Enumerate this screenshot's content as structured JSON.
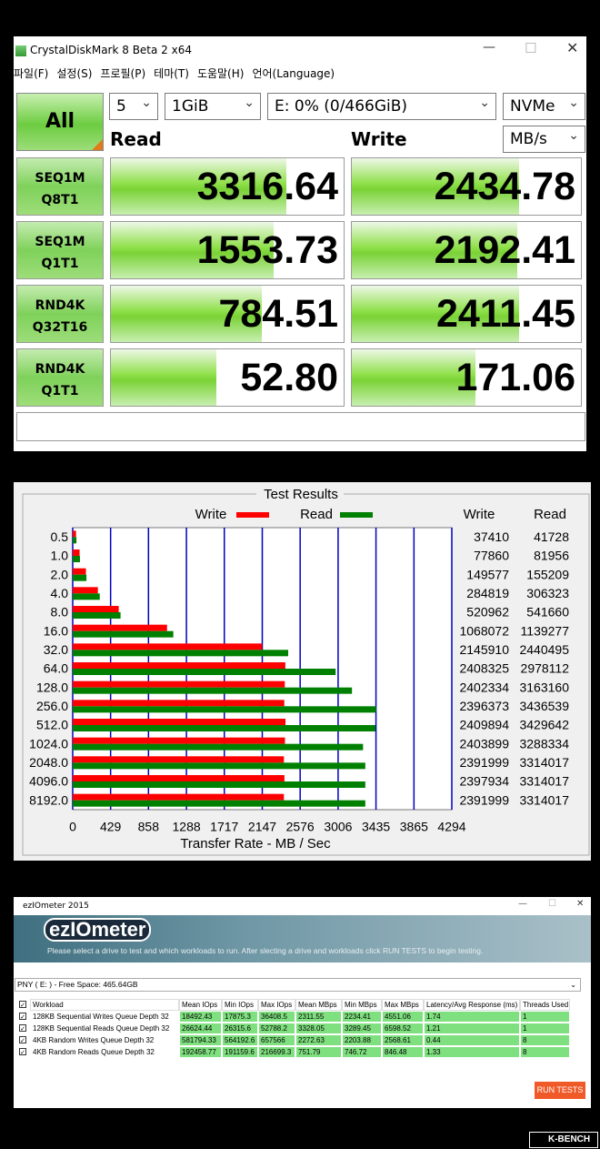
{
  "crystaldiskmark": {
    "title": "CrystalDiskMark 8 Beta 2 x64",
    "menu": [
      "파일(F)",
      "설정(S)",
      "프로필(P)",
      "테마(T)",
      "도움말(H)",
      "언어(Language)"
    ],
    "all_button": "All",
    "count": "5",
    "size": "1GiB",
    "drive": "E: 0% (0/466GiB)",
    "profile": "NVMe",
    "unit": "MB/s",
    "read_header": "Read",
    "write_header": "Write",
    "tests": [
      {
        "label": [
          "SEQ1M",
          "Q8T1"
        ],
        "read": "3316.64",
        "write": "2434.78"
      },
      {
        "label": [
          "SEQ1M",
          "Q1T1"
        ],
        "read": "1553.73",
        "write": "2192.41"
      },
      {
        "label": [
          "RND4K",
          "Q32T16"
        ],
        "read": "784.51",
        "write": "2411.45"
      },
      {
        "label": [
          "RND4K",
          "Q1T1"
        ],
        "read": "52.80",
        "write": "171.06"
      }
    ]
  },
  "chart_data": {
    "type": "bar",
    "title": "Test Results",
    "x_label": "Transfer Rate - MB / Sec",
    "categories": [
      "0.5",
      "1.0",
      "2.0",
      "4.0",
      "8.0",
      "16.0",
      "32.0",
      "64.0",
      "128.0",
      "256.0",
      "512.0",
      "1024.0",
      "2048.0",
      "4096.0",
      "8192.0"
    ],
    "series": [
      {
        "name": "Write",
        "color": "#ff0000",
        "values": [
          37.41,
          77.86,
          149.577,
          284.819,
          520.962,
          1068.072,
          2145.91,
          2408.325,
          2402.334,
          2396.373,
          2409.894,
          2403.899,
          2391.999,
          2397.934,
          2391.999
        ],
        "value_labels": [
          "37410",
          "77860",
          "149577",
          "284819",
          "520962",
          "1068072",
          "2145910",
          "2408325",
          "2402334",
          "2396373",
          "2409894",
          "2403899",
          "2391999",
          "2397934",
          "2391999"
        ]
      },
      {
        "name": "Read",
        "color": "#008000",
        "values": [
          41.728,
          81.956,
          155.209,
          306.323,
          541.66,
          1139.277,
          2440.495,
          2978.112,
          3163.16,
          3436.539,
          3429.642,
          3288.334,
          3314.017,
          3314.017,
          3314.017
        ],
        "value_labels": [
          "41728",
          "81956",
          "155209",
          "306323",
          "541660",
          "1139277",
          "2440495",
          "2978112",
          "3163160",
          "3436539",
          "3429642",
          "3288334",
          "3314017",
          "3314017",
          "3314017"
        ]
      }
    ],
    "xlim": [
      0,
      4294
    ],
    "xticks": [
      0,
      429,
      858,
      1288,
      1717,
      2147,
      2576,
      3006,
      3435,
      3865,
      4294
    ],
    "grid": true,
    "grid_color": "#0000c0"
  },
  "eziometer": {
    "window_title": "ezIOmeter 2015",
    "logo": "ezIOmeter",
    "description": "Please select a drive to test and which workloads to run. After slecting a drive and workloads click RUN TESTS to begin testing.",
    "drive": "PNY ( E: ) - Free Space: 465.64GB",
    "table": {
      "header": [
        "Workload",
        "Mean IOps",
        "Min IOps",
        "Max IOps",
        "Mean MBps",
        "Min MBps",
        "Max MBps",
        "Latency/Avg Response (ms)",
        "Threads Used"
      ],
      "rows": [
        [
          "128KB Sequential Writes Queue Depth 32",
          "18492.43",
          "17875.3",
          "36408.5",
          "2311.55",
          "2234.41",
          "4551.06",
          "1.74",
          "1"
        ],
        [
          "128KB Sequential Reads Queue Depth 32",
          "26624.44",
          "26315.6",
          "52788.2",
          "3328.05",
          "3289.45",
          "6598.52",
          "1.21",
          "1"
        ],
        [
          "4KB Random Writes Queue Depth 32",
          "581794.33",
          "564192.6",
          "657566",
          "2272.63",
          "2203.88",
          "2568.61",
          "0.44",
          "8"
        ],
        [
          "4KB Random Reads Queue Depth 32",
          "192458.77",
          "191159.6",
          "216699.3",
          "751.79",
          "746.72",
          "846.48",
          "1.33",
          "8"
        ]
      ]
    },
    "button": "RUN TESTS"
  },
  "watermark": "K-BENCH"
}
